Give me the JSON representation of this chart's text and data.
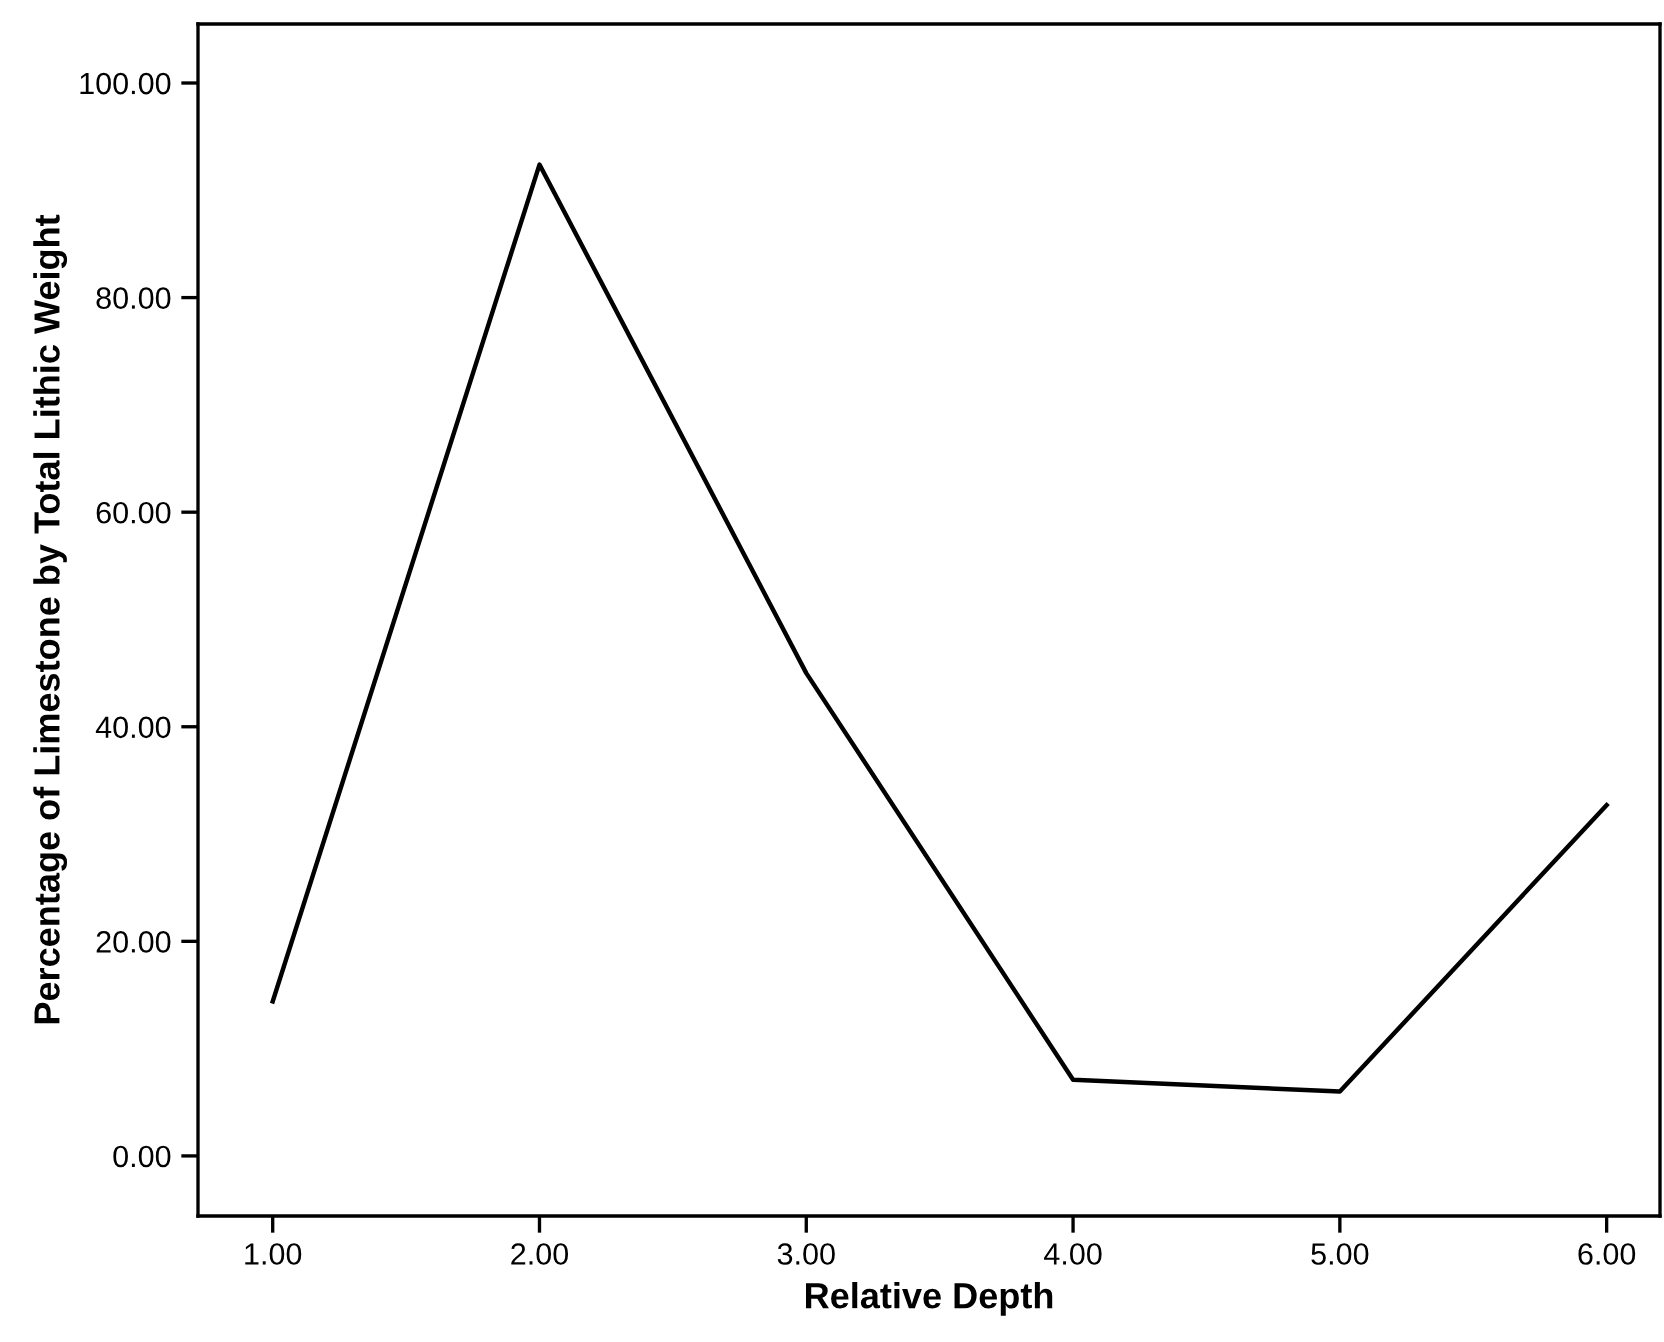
{
  "chart_data": {
    "type": "line",
    "xlabel": "Relative Depth",
    "ylabel": "Percentage of Limestone by Total Lithic Weight",
    "x": [
      1,
      2,
      3,
      4,
      5,
      6
    ],
    "series": [
      {
        "color": "#000000",
        "values": [
          14.4,
          92.4,
          45.0,
          7.1,
          6.0,
          32.7
        ]
      }
    ],
    "xlim": [
      0.72,
      6.2
    ],
    "ylim": [
      -5.6,
      105.5
    ],
    "xticks": [
      {
        "value": 1,
        "label": "1.00"
      },
      {
        "value": 2,
        "label": "2.00"
      },
      {
        "value": 3,
        "label": "3.00"
      },
      {
        "value": 4,
        "label": "4.00"
      },
      {
        "value": 5,
        "label": "5.00"
      },
      {
        "value": 6,
        "label": "6.00"
      }
    ],
    "yticks": [
      {
        "value": 0,
        "label": "0.00"
      },
      {
        "value": 20,
        "label": "20.00"
      },
      {
        "value": 40,
        "label": "40.00"
      },
      {
        "value": 60,
        "label": "60.00"
      },
      {
        "value": 80,
        "label": "80.00"
      },
      {
        "value": 100,
        "label": "100.00"
      }
    ],
    "grid": false,
    "marker": "none",
    "line_style": "solid"
  }
}
